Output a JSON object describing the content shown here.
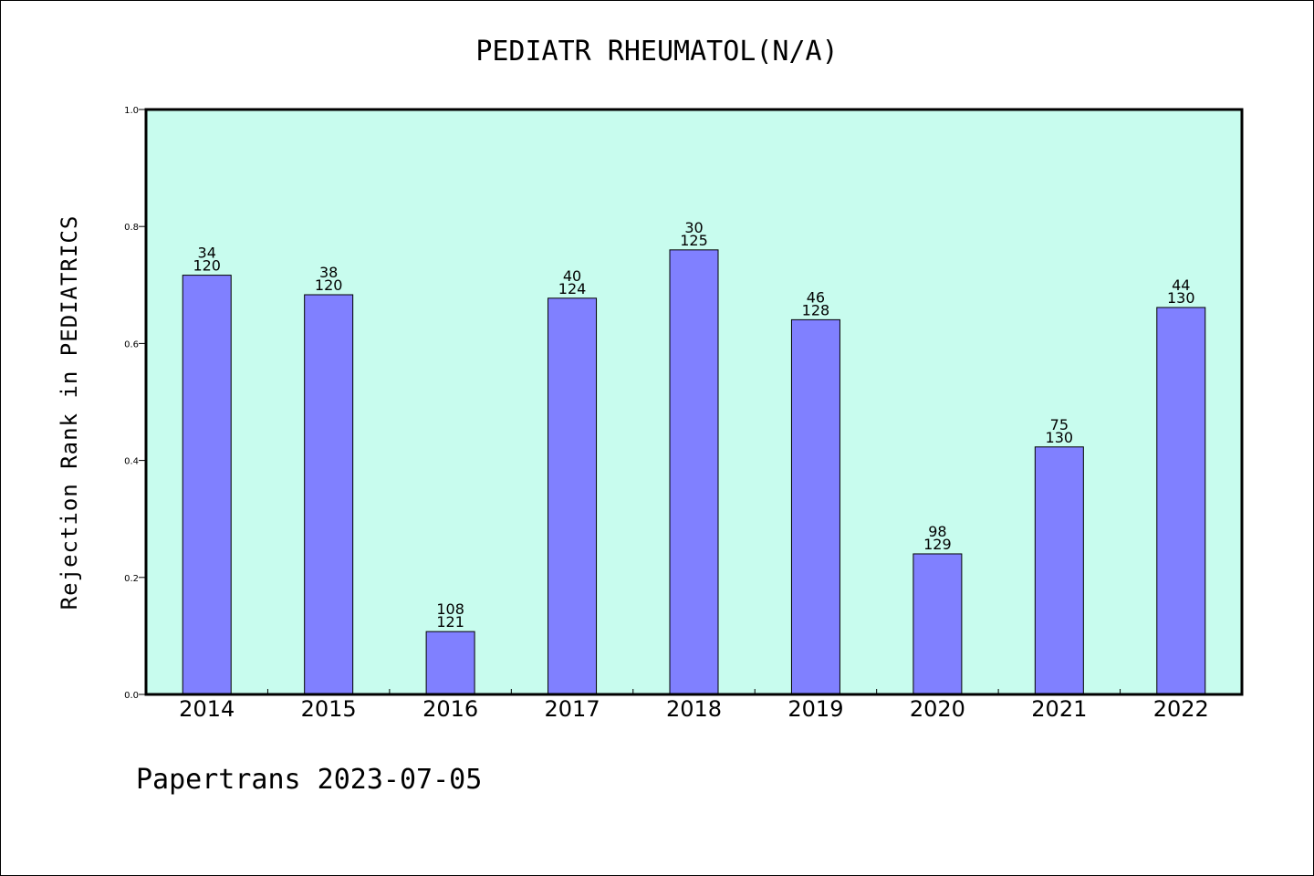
{
  "footer": "Papertrans 2023-07-05",
  "colors": {
    "plot_background": "#c8fcee",
    "bar_fill": "#8080ff",
    "bar_stroke": "#000000",
    "axis": "#000000"
  },
  "chart_data": {
    "type": "bar",
    "title": "PEDIATR RHEUMATOL(N/A)",
    "xlabel": "",
    "ylabel": "Rejection Rank in PEDIATRICS",
    "ylim": [
      0.0,
      1.0
    ],
    "yticks": [
      0.0,
      0.2,
      0.4,
      0.6,
      0.8,
      1.0
    ],
    "ytick_labels": [
      "0.0",
      "0.2",
      "0.4",
      "0.6",
      "0.8",
      "1.0"
    ],
    "grid": false,
    "categories": [
      "2014",
      "2015",
      "2016",
      "2017",
      "2018",
      "2019",
      "2020",
      "2021",
      "2022"
    ],
    "values": [
      0.7167,
      0.6833,
      0.1074,
      0.6774,
      0.76,
      0.6406,
      0.2403,
      0.4231,
      0.6615
    ],
    "annotations_top": [
      "34",
      "38",
      "108",
      "40",
      "30",
      "46",
      "98",
      "75",
      "44"
    ],
    "annotations_bottom": [
      "120",
      "120",
      "121",
      "124",
      "125",
      "128",
      "129",
      "130",
      "130"
    ]
  }
}
